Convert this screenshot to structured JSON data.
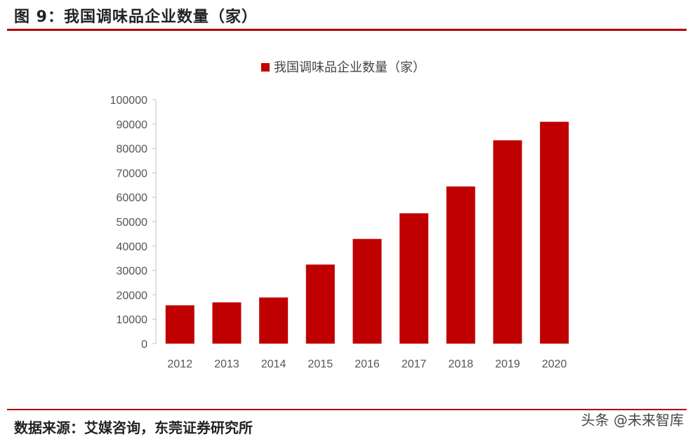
{
  "header": {
    "title": "图 9：我国调味品企业数量（家）"
  },
  "footer": {
    "source": "数据来源：艾媒咨询，东莞证券研究所",
    "watermark": "头条 @未来智库"
  },
  "colors": {
    "accent": "#c00000",
    "rule": "#b00000"
  },
  "chart_data": {
    "type": "bar",
    "categories": [
      "2012",
      "2013",
      "2014",
      "2015",
      "2016",
      "2017",
      "2018",
      "2019",
      "2020"
    ],
    "series": [
      {
        "name": "我国调味品企业数量（家）",
        "values": [
          15700,
          16900,
          18900,
          32400,
          42900,
          53400,
          64400,
          83300,
          90900
        ],
        "color": "#c00000"
      }
    ],
    "ylim": [
      0,
      100000
    ],
    "yticks": [
      0,
      10000,
      20000,
      30000,
      40000,
      50000,
      60000,
      70000,
      80000,
      90000,
      100000
    ],
    "grid": false,
    "legend": "top-center"
  }
}
